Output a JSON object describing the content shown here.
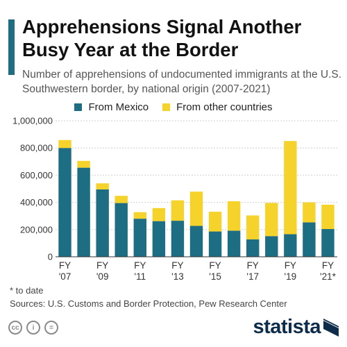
{
  "header": {
    "title": "Apprehensions Signal Another Busy Year at the Border",
    "subtitle": "Number of apprehensions of undocumented immigrants at the U.S. Southwestern border, by national origin (2007-2021)"
  },
  "legend": {
    "mexico": "From Mexico",
    "other": "From other countries"
  },
  "colors": {
    "mexico": "#1e6e83",
    "other": "#f5d32a",
    "accent": "#1e6e83",
    "brand": "#0c2c4a"
  },
  "chart_data": {
    "type": "bar",
    "stacked": true,
    "categories": [
      "2007",
      "2008",
      "2009",
      "2010",
      "2011",
      "2012",
      "2013",
      "2014",
      "2015",
      "2016",
      "2017",
      "2018",
      "2019",
      "2020",
      "2021*"
    ],
    "series": [
      {
        "name": "From Mexico",
        "values": [
          800000,
          655000,
          495000,
          395000,
          280000,
          262000,
          265000,
          227000,
          186000,
          192000,
          128000,
          152000,
          166000,
          253000,
          204000
        ]
      },
      {
        "name": "From other countries",
        "values": [
          58000,
          50000,
          45000,
          53000,
          48000,
          96000,
          150000,
          252000,
          145000,
          216000,
          176000,
          244000,
          685000,
          147000,
          179000
        ]
      }
    ],
    "tick_labels": [
      {
        "line1": "FY",
        "line2": "'07"
      },
      {
        "line1": "FY",
        "line2": "'09"
      },
      {
        "line1": "FY",
        "line2": "'11"
      },
      {
        "line1": "FY",
        "line2": "'13"
      },
      {
        "line1": "FY",
        "line2": "'15"
      },
      {
        "line1": "FY",
        "line2": "'17"
      },
      {
        "line1": "FY",
        "line2": "'19"
      },
      {
        "line1": "FY",
        "line2": "'21*"
      }
    ],
    "tick_label_index": [
      0,
      2,
      4,
      6,
      8,
      10,
      12,
      14
    ],
    "y_ticks": [
      "0",
      "200,000",
      "400,000",
      "600,000",
      "800,000",
      "1,000,000"
    ],
    "ylim": [
      0,
      1000000
    ],
    "grid": true,
    "legend_position": "top"
  },
  "footer": {
    "note": "* to date",
    "sources": "Sources: U.S. Customs and Border Protection, Pew Research Center",
    "brand": "statista",
    "license_icons": [
      "cc-icon",
      "by-icon",
      "nd-icon"
    ],
    "license_glyphs": [
      "cc",
      "i",
      "="
    ]
  }
}
